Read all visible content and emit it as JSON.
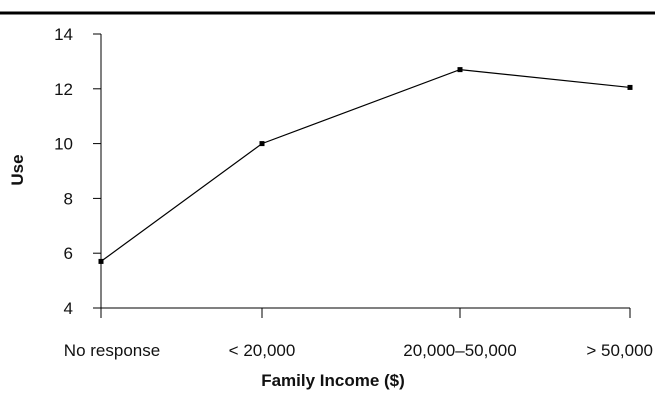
{
  "chart_data": {
    "type": "line",
    "title": "",
    "xlabel": "Family Income ($)",
    "ylabel": "Use",
    "categories": [
      "No response",
      "< 20,000",
      "20,000–50,000",
      "> 50,000"
    ],
    "series": [
      {
        "values": [
          5.7,
          10.0,
          12.7,
          12.05
        ]
      }
    ],
    "ylim": [
      4,
      14
    ],
    "yticks": [
      "4",
      "6",
      "8",
      "10",
      "12",
      "14"
    ],
    "grid": false,
    "legend": "none"
  }
}
